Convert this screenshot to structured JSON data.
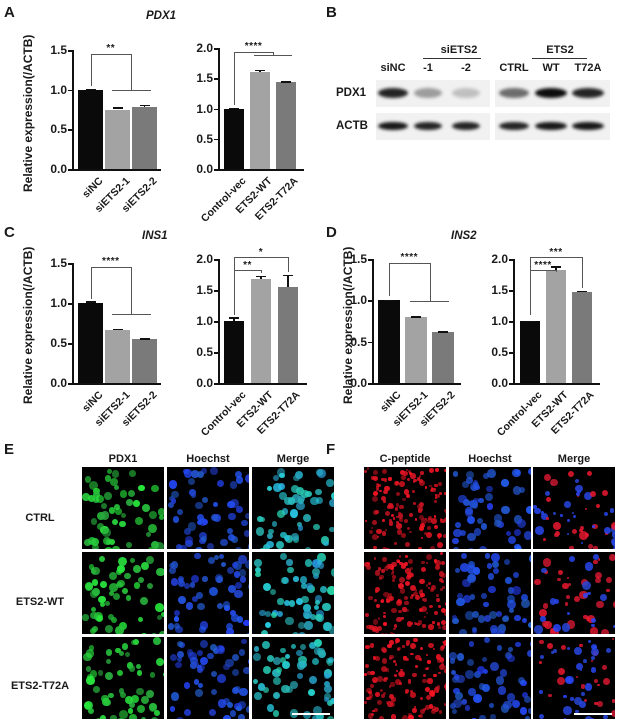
{
  "panels": {
    "A": {
      "letter": "A",
      "gene": "PDX1",
      "ylabel": "Relative expression(/ACTB)"
    },
    "B": {
      "letter": "B"
    },
    "C": {
      "letter": "C",
      "gene": "INS1",
      "ylabel": "Relative expression(/ACTB)"
    },
    "D": {
      "letter": "D",
      "gene": "INS2",
      "ylabel": "Relative expression(/ACTB)"
    },
    "E": {
      "letter": "E"
    },
    "F": {
      "letter": "F"
    }
  },
  "colors": {
    "bar_black": "#0a0a0a",
    "bar_light_gray": "#a3a3a3",
    "bar_dark_gray": "#7a7a7a",
    "pdx1_green": "#2fd14a",
    "hoechst_blue": "#2b4fe0",
    "merge_cyan": "#2fd0b8",
    "cpeptide_red": "#e0202a"
  },
  "chart_data": [
    {
      "type": "bar",
      "panel": "A",
      "title": "PDX1",
      "subplot": "knockdown",
      "categories": [
        "siNC",
        "siETS2-1",
        "siETS2-2"
      ],
      "values": [
        1.0,
        0.75,
        0.78
      ],
      "errors": [
        0.01,
        0.03,
        0.03
      ],
      "ylabel": "Relative expression(/ACTB)",
      "ylim": [
        0,
        1.5
      ],
      "yticks": [
        "0.0",
        "0.5",
        "1.0",
        "1.5"
      ],
      "significance": [
        {
          "label": "**",
          "from": "siNC",
          "to": [
            "siETS2-1",
            "siETS2-2"
          ]
        }
      ]
    },
    {
      "type": "bar",
      "panel": "A",
      "title": "PDX1",
      "subplot": "overexpression",
      "categories": [
        "Control-vec",
        "ETS2-WT",
        "ETS2-T72A"
      ],
      "values": [
        1.0,
        1.6,
        1.44
      ],
      "errors": [
        0.01,
        0.04,
        0.01
      ],
      "ylabel": "",
      "ylim": [
        0,
        2.0
      ],
      "yticks": [
        "0.0",
        "0.5",
        "1.0",
        "1.5",
        "2.0"
      ],
      "significance": [
        {
          "label": "****",
          "from": "Control-vec",
          "to": [
            "ETS2-WT",
            "ETS2-T72A"
          ]
        }
      ]
    },
    {
      "type": "bar",
      "panel": "C",
      "title": "INS1",
      "subplot": "knockdown",
      "categories": [
        "siNC",
        "siETS2-1",
        "siETS2-2"
      ],
      "values": [
        1.0,
        0.66,
        0.55
      ],
      "errors": [
        0.02,
        0.02,
        0.01
      ],
      "ylabel": "Relative expression(/ACTB)",
      "ylim": [
        0,
        1.5
      ],
      "yticks": [
        "0.0",
        "0.5",
        "1.0",
        "1.5"
      ],
      "significance": [
        {
          "label": "****",
          "from": "siNC",
          "to": [
            "siETS2-1",
            "siETS2-2"
          ]
        }
      ]
    },
    {
      "type": "bar",
      "panel": "C",
      "title": "INS1",
      "subplot": "overexpression",
      "categories": [
        "Control-vec",
        "ETS2-WT",
        "ETS2-T72A"
      ],
      "values": [
        1.0,
        1.68,
        1.55
      ],
      "errors": [
        0.06,
        0.05,
        0.2
      ],
      "ylabel": "",
      "ylim": [
        0,
        2.0
      ],
      "yticks": [
        "0.0",
        "0.5",
        "1.0",
        "1.5",
        "2.0"
      ],
      "significance": [
        {
          "label": "**",
          "from": "Control-vec",
          "to": [
            "ETS2-WT"
          ]
        },
        {
          "label": "*",
          "from": "Control-vec",
          "to": [
            "ETS2-T72A"
          ]
        }
      ]
    },
    {
      "type": "bar",
      "panel": "D",
      "title": "INS2",
      "subplot": "knockdown",
      "categories": [
        "siNC",
        "siETS2-1",
        "siETS2-2"
      ],
      "values": [
        1.0,
        0.8,
        0.62
      ],
      "errors": [
        0.005,
        0.005,
        0.008
      ],
      "ylabel": "Relative expression(/ACTB)",
      "ylim": [
        0,
        1.5
      ],
      "yticks": [
        "0.0",
        "0.5",
        "1.0",
        "1.5"
      ],
      "significance": [
        {
          "label": "****",
          "from": "siNC",
          "to": [
            "siETS2-1",
            "siETS2-2"
          ]
        }
      ]
    },
    {
      "type": "bar",
      "panel": "D",
      "title": "INS2",
      "subplot": "overexpression",
      "categories": [
        "Control-vec",
        "ETS2-WT",
        "ETS2-T72A"
      ],
      "values": [
        1.0,
        1.83,
        1.47
      ],
      "errors": [
        0.005,
        0.05,
        0.02
      ],
      "ylabel": "",
      "ylim": [
        0,
        2.0
      ],
      "yticks": [
        "0.0",
        "0.5",
        "1.0",
        "1.5",
        "2.0"
      ],
      "significance": [
        {
          "label": "****",
          "from": "Control-vec",
          "to": [
            "ETS2-WT"
          ]
        },
        {
          "label": "***",
          "from": "Control-vec",
          "to": [
            "ETS2-T72A"
          ]
        }
      ]
    }
  ],
  "western_blot": {
    "group1_header": "siETS2",
    "group2_header": "ETS2",
    "lanes": [
      "siNC",
      "-1",
      "-2",
      "CTRL",
      "WT",
      "T72A"
    ],
    "rows": [
      {
        "label": "PDX1",
        "intensity": [
          0.85,
          0.35,
          0.2,
          0.55,
          0.95,
          0.85
        ]
      },
      {
        "label": "ACTB",
        "intensity": [
          0.9,
          0.85,
          0.85,
          0.85,
          0.9,
          0.9
        ]
      }
    ]
  },
  "microscopy_E": {
    "columns": [
      "PDX1",
      "Hoechst",
      "Merge"
    ],
    "rows": [
      "CTRL",
      "ETS2-WT",
      "ETS2-T72A"
    ]
  },
  "microscopy_F": {
    "columns": [
      "C-peptide",
      "Hoechst",
      "Merge"
    ]
  }
}
